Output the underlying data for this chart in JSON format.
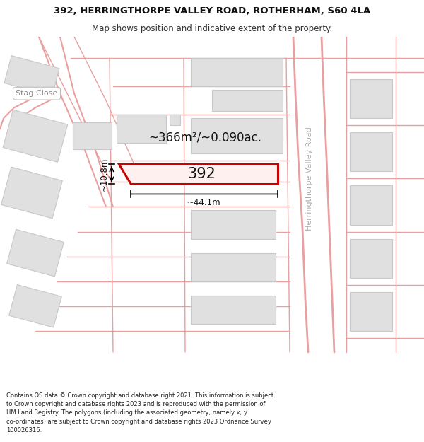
{
  "title_line1": "392, HERRINGTHORPE VALLEY ROAD, ROTHERHAM, S60 4LA",
  "title_line2": "Map shows position and indicative extent of the property.",
  "copyright_text": "Contains OS data © Crown copyright and database right 2021. This information is subject\nto Crown copyright and database rights 2023 and is reproduced with the permission of\nHM Land Registry. The polygons (including the associated geometry, namely x, y\nco-ordinates) are subject to Crown copyright and database rights 2023 Ordnance Survey\n100026316.",
  "map_bg": "#f5f5f5",
  "plot_bg": "#ffffff",
  "road_color": "#e8a0a0",
  "road_lw": 1.0,
  "building_fill": "#e0e0e0",
  "building_edge": "#c8c8c8",
  "building_lw": 0.8,
  "highlight_fill": "#fff0f0",
  "highlight_edge": "#cc0000",
  "highlight_lw": 2.2,
  "property_label": "392",
  "area_text": "~366m²/~0.090ac.",
  "dim_v": "~10.8m",
  "dim_h": "~44.1m",
  "label_right": "Herringthorpe Valley Road",
  "label_left": "Stag Close",
  "title_fontsize": 9.5,
  "subtitle_fontsize": 8.5,
  "footer_fontsize": 6.0,
  "prop_label_fontsize": 15,
  "area_fontsize": 12,
  "dim_fontsize": 8.5,
  "road_label_fontsize": 8.0
}
